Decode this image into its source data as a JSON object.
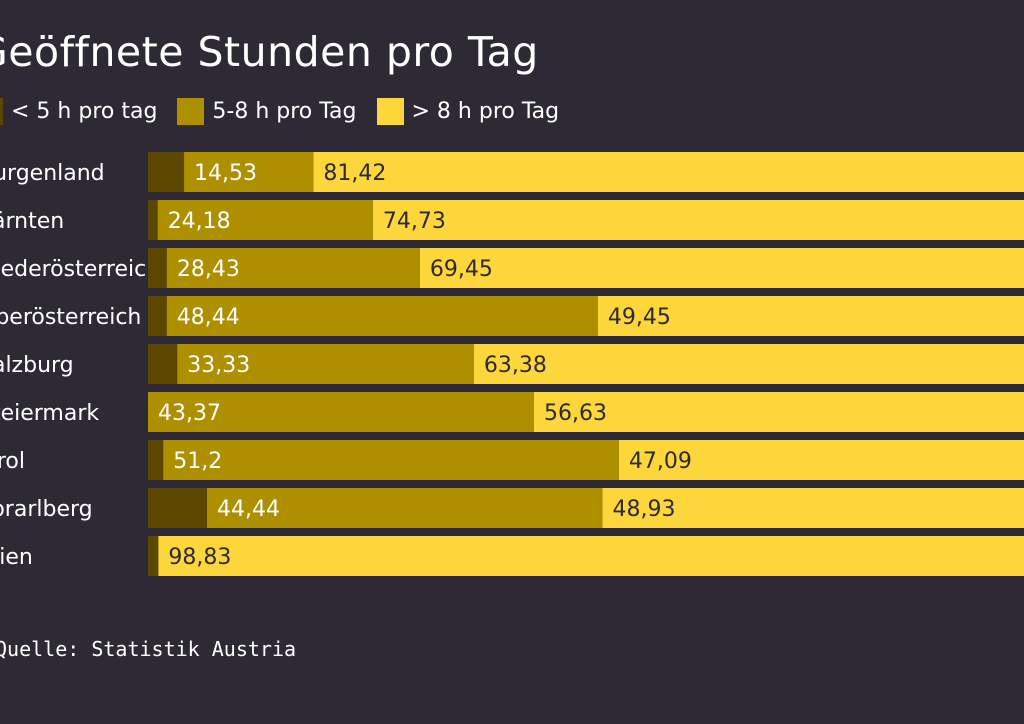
{
  "chart_data": {
    "type": "bar",
    "stacked": true,
    "orientation": "horizontal",
    "title": "Geöffnete Stunden pro Tag",
    "categories": [
      "Burgenland",
      "Kärnten",
      "Niederösterreich",
      "Oberösterreich",
      "Salzburg",
      "Steiermark",
      "Tirol",
      "Vorarlberg",
      "Wien"
    ],
    "series": [
      {
        "name": "< 5 h pro tag",
        "color": "#5c4700",
        "values": [
          4.05,
          1.09,
          2.12,
          2.11,
          3.29,
          0.0,
          1.71,
          6.63,
          1.17
        ]
      },
      {
        "name": "5-8 h pro Tag",
        "color": "#ad8f00",
        "values": [
          14.53,
          24.18,
          28.43,
          48.44,
          33.33,
          43.37,
          51.2,
          44.44,
          0.0
        ]
      },
      {
        "name": "> 8 h pro Tag",
        "color": "#fdd63c",
        "values": [
          81.42,
          74.73,
          69.45,
          49.45,
          63.38,
          56.63,
          47.09,
          48.93,
          98.83
        ]
      }
    ],
    "data_labels": [
      [
        "",
        "14,53",
        "81,42"
      ],
      [
        "",
        "24,18",
        "74,73"
      ],
      [
        "",
        "28,43",
        "69,45"
      ],
      [
        "",
        "48,44",
        "49,45"
      ],
      [
        "",
        "33,33",
        "63,38"
      ],
      [
        "",
        "43,37",
        "56,63"
      ],
      [
        "",
        "51,2",
        "47,09"
      ],
      [
        "",
        "44,44",
        "48,93"
      ],
      [
        "",
        "",
        "98,83"
      ]
    ],
    "xlim": [
      0,
      100
    ],
    "legend_position": "top-left"
  },
  "source": "Quelle: Statistik Austria"
}
